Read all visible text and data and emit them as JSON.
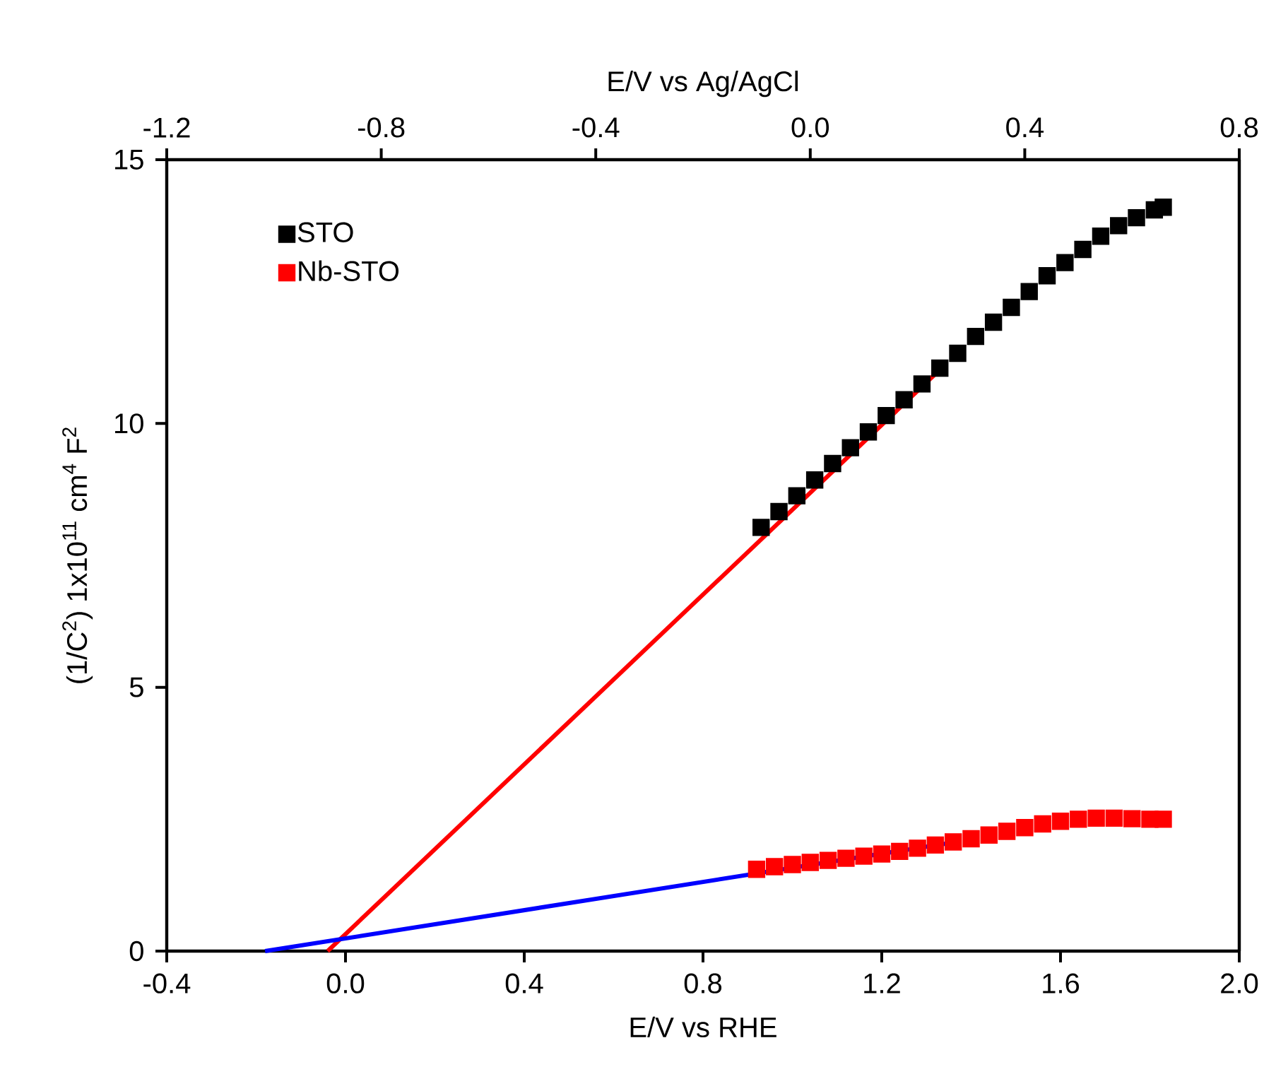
{
  "chart_data": {
    "type": "scatter",
    "xlabel": "E/V vs RHE",
    "x2label": "E/V vs Ag/AgCl",
    "ylabel": "(1/C$^{2}$) 1x10$^{11}$ cm$^{4}$ F$^{2}$",
    "xlim": [
      -0.4,
      2.0
    ],
    "xticks": [
      -0.4,
      {
        "value": 0,
        "label": "0.0"
      },
      0.4,
      0.8,
      1.2,
      1.6,
      {
        "value": 2,
        "label": "2.0"
      }
    ],
    "x2lim": [
      -1.2,
      0.8
    ],
    "x2ticks": [
      -1.2,
      -0.8,
      -0.4,
      {
        "value": 0,
        "label": "0.0"
      },
      0.4,
      0.8
    ],
    "ylim": [
      0,
      15
    ],
    "yticks": [
      0,
      5,
      10,
      15
    ],
    "legend": "top left",
    "series": [
      {
        "name": "STO",
        "marker": "square",
        "color": "#000000",
        "x": [
          0.93,
          0.97,
          1.01,
          1.05,
          1.09,
          1.13,
          1.17,
          1.21,
          1.25,
          1.29,
          1.33,
          1.37,
          1.41,
          1.45,
          1.49,
          1.53,
          1.57,
          1.61,
          1.65,
          1.69,
          1.73,
          1.77,
          1.81,
          1.83
        ],
        "values": [
          8.03,
          8.33,
          8.63,
          8.93,
          9.24,
          9.54,
          9.84,
          10.15,
          10.45,
          10.75,
          11.05,
          11.33,
          11.65,
          11.92,
          12.2,
          12.5,
          12.8,
          13.05,
          13.3,
          13.55,
          13.75,
          13.9,
          14.05,
          14.1
        ]
      },
      {
        "name": "Nb-STO",
        "marker": "square",
        "color": "#ff0000",
        "x": [
          0.92,
          0.96,
          1.0,
          1.04,
          1.08,
          1.12,
          1.16,
          1.2,
          1.24,
          1.28,
          1.32,
          1.36,
          1.4,
          1.44,
          1.48,
          1.52,
          1.56,
          1.6,
          1.64,
          1.68,
          1.72,
          1.76,
          1.8,
          1.83
        ],
        "values": [
          1.55,
          1.6,
          1.64,
          1.68,
          1.72,
          1.76,
          1.8,
          1.84,
          1.89,
          1.95,
          2.01,
          2.07,
          2.13,
          2.2,
          2.27,
          2.34,
          2.41,
          2.46,
          2.5,
          2.52,
          2.52,
          2.51,
          2.5,
          2.5
        ]
      },
      {
        "type": "line",
        "marker": "none",
        "color": "#ff0000",
        "x": [
          -0.04,
          1.345
        ],
        "values": [
          0,
          11.14
        ]
      },
      {
        "type": "line",
        "marker": "none",
        "color": "#0000ff",
        "x": [
          -0.18,
          1.345
        ],
        "values": [
          0,
          2.04
        ]
      }
    ]
  }
}
